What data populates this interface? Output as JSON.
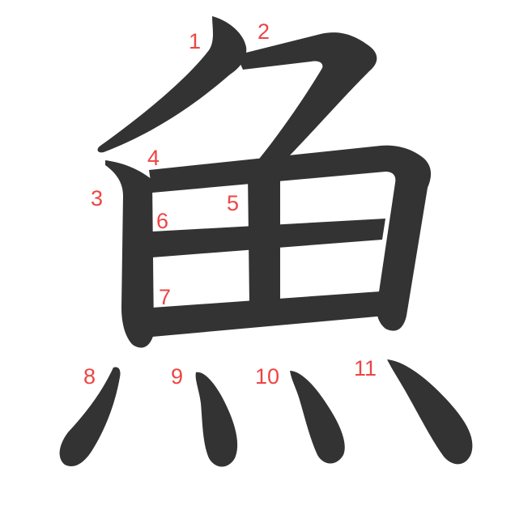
{
  "character": "魚",
  "stroke_color": "#333333",
  "number_color": "#ee4444",
  "stroke_numbers": [
    "1",
    "2",
    "3",
    "4",
    "5",
    "6",
    "7",
    "8",
    "9",
    "10",
    "11"
  ]
}
